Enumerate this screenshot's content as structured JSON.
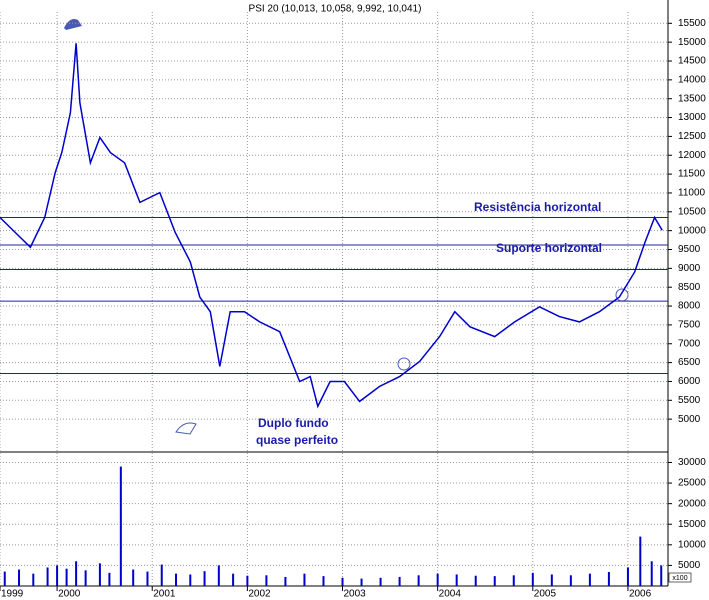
{
  "chart_data": {
    "type": "line",
    "title": "PSI 20 (10,013, 10,058, 9,992, 10,041)",
    "x": [
      1999.4,
      1999.61,
      1999.72,
      1999.87,
      1999.98,
      2000.05,
      2000.14,
      2000.2,
      2000.24,
      2000.35,
      2000.45,
      2000.56,
      2000.71,
      2000.87,
      2001.08,
      2001.24,
      2001.4,
      2001.5,
      2001.61,
      2001.71,
      2001.82,
      2001.97,
      2002.13,
      2002.34,
      2002.55,
      2002.66,
      2002.74,
      2002.87,
      2003.02,
      2003.18,
      2003.39,
      2003.6,
      2003.81,
      2004.02,
      2004.18,
      2004.34,
      2004.6,
      2004.81,
      2005.07,
      2005.28,
      2005.49,
      2005.7,
      2005.91,
      2006.07,
      2006.18,
      2006.28,
      2006.36
    ],
    "series": [
      {
        "color": "#0000cc",
        "values": [
          10350,
          9830,
          9560,
          10350,
          11540,
          12070,
          13130,
          14970,
          13390,
          11800,
          12470,
          12070,
          11800,
          10750,
          11010,
          9960,
          9170,
          8240,
          7850,
          6400,
          7850,
          7850,
          7580,
          7320,
          6000,
          6130,
          5340,
          6000,
          6000,
          5470,
          5870,
          6130,
          6530,
          7190,
          7850,
          7450,
          7190,
          7580,
          7980,
          7720,
          7580,
          7850,
          8240,
          8900,
          9700,
          10350,
          10010
        ]
      }
    ],
    "xlim": [
      1999.4,
      2006.4
    ],
    "xticks": [
      {
        "value": 1999.4,
        "label": "1999"
      },
      2000,
      2001,
      2002,
      2003,
      2004,
      2005,
      2006
    ],
    "ylim": [
      4500,
      15800
    ],
    "yticks": [
      5000,
      5500,
      6000,
      6500,
      7000,
      7500,
      8000,
      8500,
      9000,
      9500,
      10000,
      10500,
      11000,
      11500,
      12000,
      12500,
      13000,
      13500,
      14000,
      14500,
      15000,
      15500
    ],
    "hlines": [
      10350,
      9620,
      8970,
      8130,
      6210
    ],
    "hline_color": "#2020a0",
    "annotations": [
      "Resistência horizontal",
      "Suporte horizontal",
      "Duplo fundo",
      "quase perfeito"
    ],
    "grid": true,
    "volume": {
      "type": "bar",
      "color": "#0000cc",
      "x": [
        1999.45,
        1999.6,
        1999.75,
        1999.9,
        2000.0,
        2000.1,
        2000.2,
        2000.3,
        2000.45,
        2000.55,
        2000.67,
        2000.8,
        2000.95,
        2001.1,
        2001.25,
        2001.4,
        2001.55,
        2001.7,
        2001.85,
        2002.0,
        2002.2,
        2002.4,
        2002.6,
        2002.8,
        2003.0,
        2003.2,
        2003.4,
        2003.6,
        2003.8,
        2004.0,
        2004.2,
        2004.4,
        2004.6,
        2004.8,
        2005.0,
        2005.2,
        2005.4,
        2005.6,
        2005.8,
        2006.0,
        2006.13,
        2006.25,
        2006.35
      ],
      "values": [
        3500,
        4000,
        3000,
        4500,
        5000,
        4200,
        6000,
        3800,
        5500,
        3200,
        29000,
        4000,
        3500,
        5200,
        3000,
        2800,
        3600,
        5000,
        3000,
        2500,
        2600,
        2200,
        3000,
        2400,
        2000,
        1800,
        2000,
        2200,
        2600,
        3000,
        2800,
        2500,
        2400,
        2600,
        3200,
        2800,
        2600,
        3000,
        3400,
        4500,
        12000,
        6000,
        5000
      ],
      "ylim": [
        0,
        30600
      ],
      "yticks": [
        5000,
        10000,
        15000,
        20000,
        25000,
        30000
      ],
      "unit": "x100"
    }
  }
}
